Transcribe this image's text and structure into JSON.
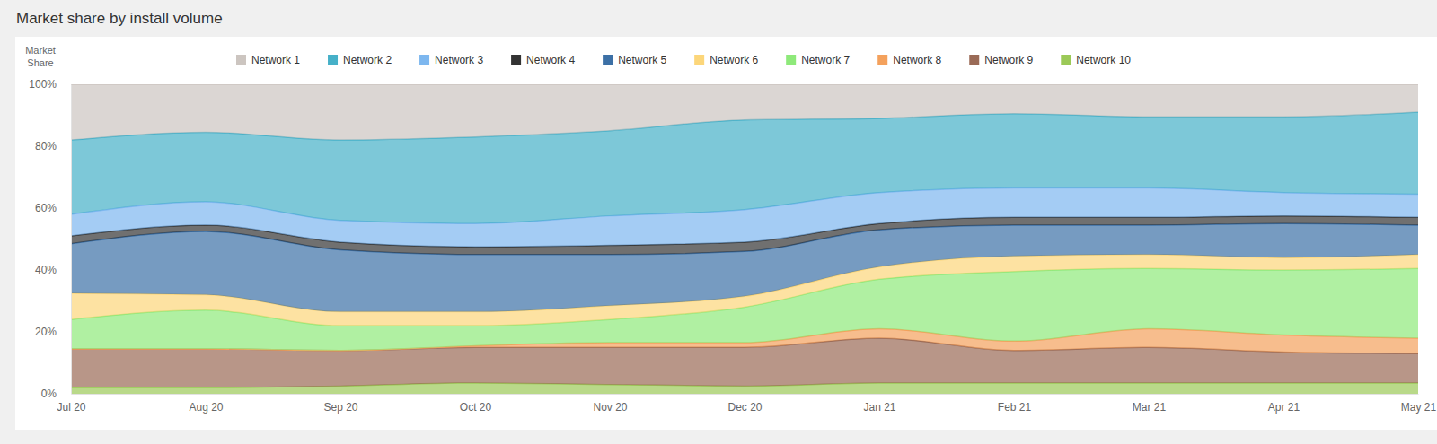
{
  "chart_data": {
    "type": "area",
    "title": "Market share by install volume",
    "y_label": "Market Share",
    "stacked": true,
    "grid": false,
    "legend": "top",
    "categories": [
      "Jul 20",
      "Aug 20",
      "Sep 20",
      "Oct 20",
      "Nov 20",
      "Dec 20",
      "Jan 21",
      "Feb 21",
      "Mar 21",
      "Apr 21",
      "May 21"
    ],
    "ylim": [
      0,
      100
    ],
    "yticks": [
      {
        "value": 0,
        "label": "0%"
      },
      {
        "value": 20,
        "label": "20%"
      },
      {
        "value": 40,
        "label": "40%"
      },
      {
        "value": 60,
        "label": "60%"
      },
      {
        "value": 80,
        "label": "80%"
      },
      {
        "value": 100,
        "label": "100%"
      }
    ],
    "series": [
      {
        "name": "Network 1",
        "color": "#ccc5c0",
        "values": [
          18,
          15.5,
          18,
          17,
          15,
          11.5,
          11,
          9.5,
          10.5,
          10.5,
          9
        ]
      },
      {
        "name": "Network 2",
        "color": "#46b0c8",
        "values": [
          24,
          22.5,
          26,
          28,
          27.5,
          29,
          24,
          24,
          23,
          24.5,
          26.5
        ]
      },
      {
        "name": "Network 3",
        "color": "#7db7ef",
        "values": [
          7,
          7.5,
          7,
          7.5,
          9.5,
          10.5,
          10,
          9.5,
          9.5,
          7.5,
          7.5
        ]
      },
      {
        "name": "Network 4",
        "color": "#333333",
        "values": [
          2.5,
          2,
          2.5,
          2.5,
          3,
          3,
          2,
          2.5,
          2.5,
          2.5,
          2.5
        ]
      },
      {
        "name": "Network 5",
        "color": "#3c70a6",
        "values": [
          16,
          20.5,
          20,
          18.5,
          16.5,
          14.5,
          12,
          10,
          9.5,
          11,
          9.5
        ]
      },
      {
        "name": "Network 6",
        "color": "#fcd67a",
        "values": [
          8.5,
          5,
          4.5,
          4.5,
          4.5,
          3.5,
          4,
          5,
          4.5,
          4,
          4.5
        ]
      },
      {
        "name": "Network 7",
        "color": "#8ee97a",
        "values": [
          9.5,
          12.5,
          8,
          6.5,
          7.5,
          11.5,
          16,
          22.5,
          19.5,
          21,
          22.5
        ]
      },
      {
        "name": "Network 8",
        "color": "#f4a15c",
        "values": [
          0,
          0,
          0,
          0.5,
          1.5,
          1.5,
          3,
          3,
          6,
          5.5,
          5
        ]
      },
      {
        "name": "Network 9",
        "color": "#9a6a56",
        "values": [
          12.5,
          12.5,
          11.5,
          11.5,
          12,
          12.5,
          14.5,
          10.5,
          11.5,
          10,
          9.5
        ]
      },
      {
        "name": "Network 10",
        "color": "#9bc957",
        "values": [
          2,
          2,
          2.5,
          3.5,
          3,
          2.5,
          3.5,
          3.5,
          3.5,
          3.5,
          3.5
        ]
      }
    ]
  }
}
